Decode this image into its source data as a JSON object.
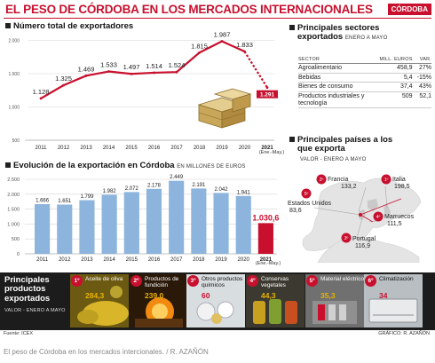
{
  "header": {
    "title": "EL PESO DE CÓRDOBA EN LOS MERCADOS INTERNACIONALES",
    "brand": "CÓRDOBA"
  },
  "colors": {
    "accent": "#c8102e",
    "bar": "#8cb4dc",
    "highlight": "#e8b400"
  },
  "exporters": {
    "title": "Número total de exportadores",
    "annotation": "(Ene.-May.)"
  },
  "evolution": {
    "title": "Evolución de la exportación en Córdoba",
    "unit": "EN MILLONES DE EUROS",
    "annotation": "(Ene.-May.)"
  },
  "sectors": {
    "title_line1": "Principales sectores",
    "title_line2": "exportados",
    "subtitle": "ENERO A MAYO",
    "columns": [
      "SECTOR",
      "MILL. EUROS",
      "VAR."
    ],
    "rows": [
      {
        "name": "Agroalimentario",
        "value": "458,9",
        "var": "27%"
      },
      {
        "name": "Bebidas",
        "value": "5,4",
        "var": "-15%"
      },
      {
        "name": "Bienes de consumo",
        "value": "37,4",
        "var": "43%"
      },
      {
        "name": "Productos industriales y tecnología",
        "value": "509",
        "var": "52,1"
      }
    ]
  },
  "countries": {
    "title_line1": "Principales países a los",
    "title_line2": "que exporta",
    "subtitle": "VALOR - ENERO A MAYO",
    "items": [
      {
        "rank": "1º",
        "name": "Italia",
        "value": "198,5"
      },
      {
        "rank": "2º",
        "name": "Francia",
        "value": "133,2"
      },
      {
        "rank": "3º",
        "name": "Portugal",
        "value": "116,9"
      },
      {
        "rank": "4º",
        "name": "Marruecos",
        "value": "111,5"
      },
      {
        "rank": "5º",
        "name": "Estados Unidos",
        "value": "83,6"
      }
    ]
  },
  "products": {
    "title_line1": "Principales",
    "title_line2": "productos",
    "title_line3": "exportados",
    "subtitle": "VALOR - ENERO A MAYO",
    "items": [
      {
        "rank": "1º",
        "label": "Aceite de oliva",
        "value": "284,3"
      },
      {
        "rank": "2º",
        "label": "Productos de fundición",
        "value": "239,0"
      },
      {
        "rank": "3º",
        "label": "Otros productos químicos",
        "value": "60"
      },
      {
        "rank": "4º",
        "label": "Conservas vegetales",
        "value": "44,3"
      },
      {
        "rank": "5º",
        "label": "Material eléctrico",
        "value": "35,3"
      },
      {
        "rank": "6º",
        "label": "Climatización",
        "value": "34"
      }
    ]
  },
  "footer": {
    "source": "Fuente: ICEX",
    "credit": "GRÁFICO: R. AZAÑÓN",
    "caption": "El peso de Córdoba en los mercados intercionales.  /  R. AZAÑÓN"
  },
  "chart_data": [
    {
      "type": "line",
      "title": "Número total de exportadores",
      "x": [
        "2011",
        "2012",
        "2013",
        "2014",
        "2015",
        "2016",
        "2017",
        "2018",
        "2019",
        "2020",
        "2021"
      ],
      "y": [
        1128,
        1325,
        1469,
        1533,
        1497,
        1514,
        1524,
        1815,
        1987,
        1833,
        1291
      ],
      "labels": [
        "1.128",
        "1.325",
        "1.469",
        "1.533",
        "1.497",
        "1.514",
        "1.524",
        "1.815",
        "1.987",
        "1.833",
        "1.291"
      ],
      "yticks": [
        500,
        1000,
        1500,
        2000
      ],
      "ytick_labels": [
        "500",
        "1.000",
        "1.500",
        "2.000"
      ],
      "ylim": [
        500,
        2100
      ],
      "grid": true,
      "dashed_last_segment": true
    },
    {
      "type": "bar",
      "title": "Evolución de la exportación en Córdoba",
      "categories": [
        "2011",
        "2012",
        "2013",
        "2014",
        "2015",
        "2016",
        "2017",
        "2018",
        "2019",
        "2020",
        "2021"
      ],
      "values": [
        1666,
        1651,
        1799,
        1982,
        2072,
        2178,
        2449,
        2191,
        2042,
        1941,
        1030.6
      ],
      "labels": [
        "1.666",
        "1.651",
        "1.799",
        "1.982",
        "2.072",
        "2.178",
        "2.449",
        "2.191",
        "2.042",
        "1.941",
        "1.030,6"
      ],
      "yticks": [
        0,
        500,
        1000,
        1500,
        2000,
        2500
      ],
      "ytick_labels": [
        "0",
        "500",
        "1.000",
        "1.500",
        "2.000",
        "2.500"
      ],
      "ylim": [
        0,
        2500
      ],
      "grid": true,
      "highlight_last": true
    }
  ]
}
